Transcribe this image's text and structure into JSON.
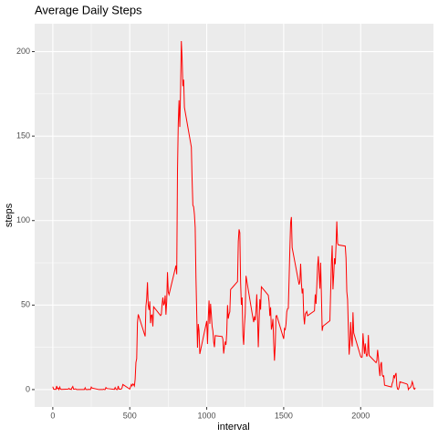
{
  "chart_data": {
    "type": "line",
    "title": "Average Daily Steps",
    "x_label": "interval",
    "y_label": "steps",
    "x": [
      0,
      5,
      10,
      15,
      20,
      25,
      30,
      35,
      40,
      45,
      50,
      55,
      100,
      105,
      110,
      115,
      120,
      125,
      130,
      135,
      140,
      145,
      150,
      155,
      200,
      205,
      210,
      215,
      220,
      225,
      230,
      235,
      240,
      245,
      250,
      255,
      300,
      305,
      310,
      315,
      320,
      325,
      330,
      335,
      340,
      345,
      350,
      355,
      400,
      405,
      410,
      415,
      420,
      425,
      430,
      435,
      440,
      445,
      450,
      455,
      500,
      505,
      510,
      515,
      520,
      525,
      530,
      535,
      540,
      545,
      550,
      555,
      600,
      605,
      610,
      615,
      620,
      625,
      630,
      635,
      640,
      645,
      650,
      655,
      700,
      705,
      710,
      715,
      720,
      725,
      730,
      735,
      740,
      745,
      750,
      755,
      800,
      805,
      810,
      815,
      820,
      825,
      830,
      835,
      840,
      845,
      850,
      855,
      900,
      905,
      910,
      915,
      920,
      925,
      930,
      935,
      940,
      945,
      950,
      955,
      1000,
      1005,
      1010,
      1015,
      1020,
      1025,
      1030,
      1035,
      1040,
      1045,
      1050,
      1055,
      1100,
      1105,
      1110,
      1115,
      1120,
      1125,
      1130,
      1135,
      1140,
      1145,
      1150,
      1155,
      1200,
      1205,
      1210,
      1215,
      1220,
      1225,
      1230,
      1235,
      1240,
      1245,
      1250,
      1255,
      1300,
      1305,
      1310,
      1315,
      1320,
      1325,
      1330,
      1335,
      1340,
      1345,
      1350,
      1355,
      1400,
      1405,
      1410,
      1415,
      1420,
      1425,
      1430,
      1435,
      1440,
      1445,
      1450,
      1455,
      1500,
      1505,
      1510,
      1515,
      1520,
      1525,
      1530,
      1535,
      1540,
      1545,
      1550,
      1555,
      1600,
      1605,
      1610,
      1615,
      1620,
      1625,
      1630,
      1635,
      1640,
      1645,
      1650,
      1655,
      1700,
      1705,
      1710,
      1715,
      1720,
      1725,
      1730,
      1735,
      1740,
      1745,
      1750,
      1755,
      1800,
      1805,
      1810,
      1815,
      1820,
      1825,
      1830,
      1835,
      1840,
      1845,
      1850,
      1855,
      1900,
      1905,
      1910,
      1915,
      1920,
      1925,
      1930,
      1935,
      1940,
      1945,
      1950,
      1955,
      2000,
      2005,
      2010,
      2015,
      2020,
      2025,
      2030,
      2035,
      2040,
      2045,
      2050,
      2055,
      2100,
      2105,
      2110,
      2115,
      2120,
      2125,
      2130,
      2135,
      2140,
      2145,
      2150,
      2155,
      2200,
      2205,
      2210,
      2215,
      2220,
      2225,
      2230,
      2235,
      2240,
      2245,
      2250,
      2255,
      2300,
      2305,
      2310,
      2315,
      2320,
      2325,
      2330,
      2335,
      2340,
      2345,
      2350,
      2355
    ],
    "series": [
      {
        "name": "steps",
        "color": "#ff0000",
        "values": [
          1.7,
          0.3,
          0.1,
          0.2,
          0.1,
          2.1,
          0.5,
          0.9,
          0,
          1.5,
          0.3,
          0.1,
          0.3,
          0.7,
          0.2,
          0.3,
          0,
          1.1,
          1.8,
          0.2,
          0.2,
          0.4,
          0.3,
          0,
          0,
          0,
          1.1,
          0,
          0,
          0.1,
          0,
          0.2,
          0,
          0,
          1.5,
          0.9,
          0,
          0,
          0,
          0,
          0,
          0,
          0.2,
          0,
          0,
          1.2,
          0.7,
          0.6,
          0.1,
          1.2,
          0.3,
          0,
          0,
          2.1,
          0.3,
          0.3,
          0.2,
          0.3,
          1.1,
          3.0,
          0.3,
          1.6,
          3.0,
          2.2,
          3.3,
          3.0,
          2.1,
          6.1,
          16.0,
          18.3,
          39.5,
          44.5,
          31.5,
          49.3,
          53.8,
          63.5,
          50.0,
          47.1,
          52.2,
          39.3,
          44.0,
          44.2,
          37.4,
          49.0,
          43.8,
          44.4,
          50.5,
          54.5,
          49.9,
          51.0,
          55.7,
          44.3,
          52.3,
          69.5,
          57.8,
          56.2,
          73.4,
          68.2,
          129.4,
          157.5,
          171.2,
          155.4,
          177.3,
          206.2,
          195.9,
          179.6,
          183.4,
          167.0,
          143.5,
          124.0,
          109.1,
          108.1,
          103.7,
          95.9,
          66.2,
          45.2,
          24.8,
          38.8,
          35.0,
          21.1,
          40.6,
          27.0,
          42.4,
          52.7,
          38.9,
          50.8,
          44.3,
          37.4,
          34.7,
          28.3,
          25.1,
          31.9,
          31.4,
          29.7,
          21.3,
          25.5,
          28.4,
          26.5,
          33.4,
          50.0,
          42.0,
          44.6,
          46.0,
          59.2,
          63.9,
          87.6,
          94.8,
          92.8,
          63.4,
          50.2,
          54.5,
          32.4,
          26.5,
          37.7,
          45.1,
          67.3,
          42.3,
          39.9,
          43.3,
          41.0,
          46.2,
          56.4,
          42.8,
          25.1,
          40.0,
          53.5,
          47.3,
          60.8,
          55.8,
          52.0,
          43.6,
          48.7,
          35.5,
          37.5,
          41.8,
          27.5,
          17.1,
          26.1,
          43.6,
          43.8,
          30.0,
          36.1,
          35.5,
          38.8,
          46.0,
          47.8,
          48.1,
          65.3,
          82.9,
          98.7,
          102.1,
          84.0,
          62.1,
          64.1,
          74.5,
          63.2,
          56.9,
          59.8,
          43.9,
          38.6,
          44.7,
          45.5,
          46.2,
          43.7,
          46.6,
          56.3,
          50.7,
          61.2,
          72.7,
          78.9,
          68.9,
          59.7,
          75.1,
          56.5,
          34.8,
          37.5,
          40.7,
          58.0,
          74.7,
          85.3,
          59.3,
          67.8,
          77.7,
          74.2,
          85.3,
          99.5,
          86.6,
          85.6,
          84.9,
          77.8,
          58.0,
          53.4,
          36.3,
          20.7,
          27.4,
          40.0,
          30.2,
          25.5,
          45.7,
          33.5,
          19.6,
          19.0,
          19.3,
          33.3,
          26.8,
          21.2,
          27.3,
          21.3,
          19.5,
          21.3,
          32.3,
          20.2,
          15.9,
          17.2,
          23.5,
          19.2,
          12.5,
          8.0,
          14.7,
          16.3,
          8.7,
          7.8,
          8.1,
          2.6,
          1.5,
          3.7,
          4.8,
          8.5,
          7.1,
          8.7,
          9.8,
          2.2,
          0.3,
          0.1,
          1.6,
          4.6,
          3.3,
          2.8,
          0,
          0.8,
          1.0,
          1.6,
          2.6,
          4.7,
          3.3,
          0.6,
          0.2,
          1.1
        ]
      }
    ],
    "xlim": [
      -117.75,
      2472.75
    ],
    "xticks": [
      0,
      500,
      1000,
      1500,
      2000
    ],
    "ylim": [
      -10.3,
      216.5
    ],
    "yticks": [
      0,
      50,
      100,
      150,
      200
    ],
    "grid": true
  }
}
